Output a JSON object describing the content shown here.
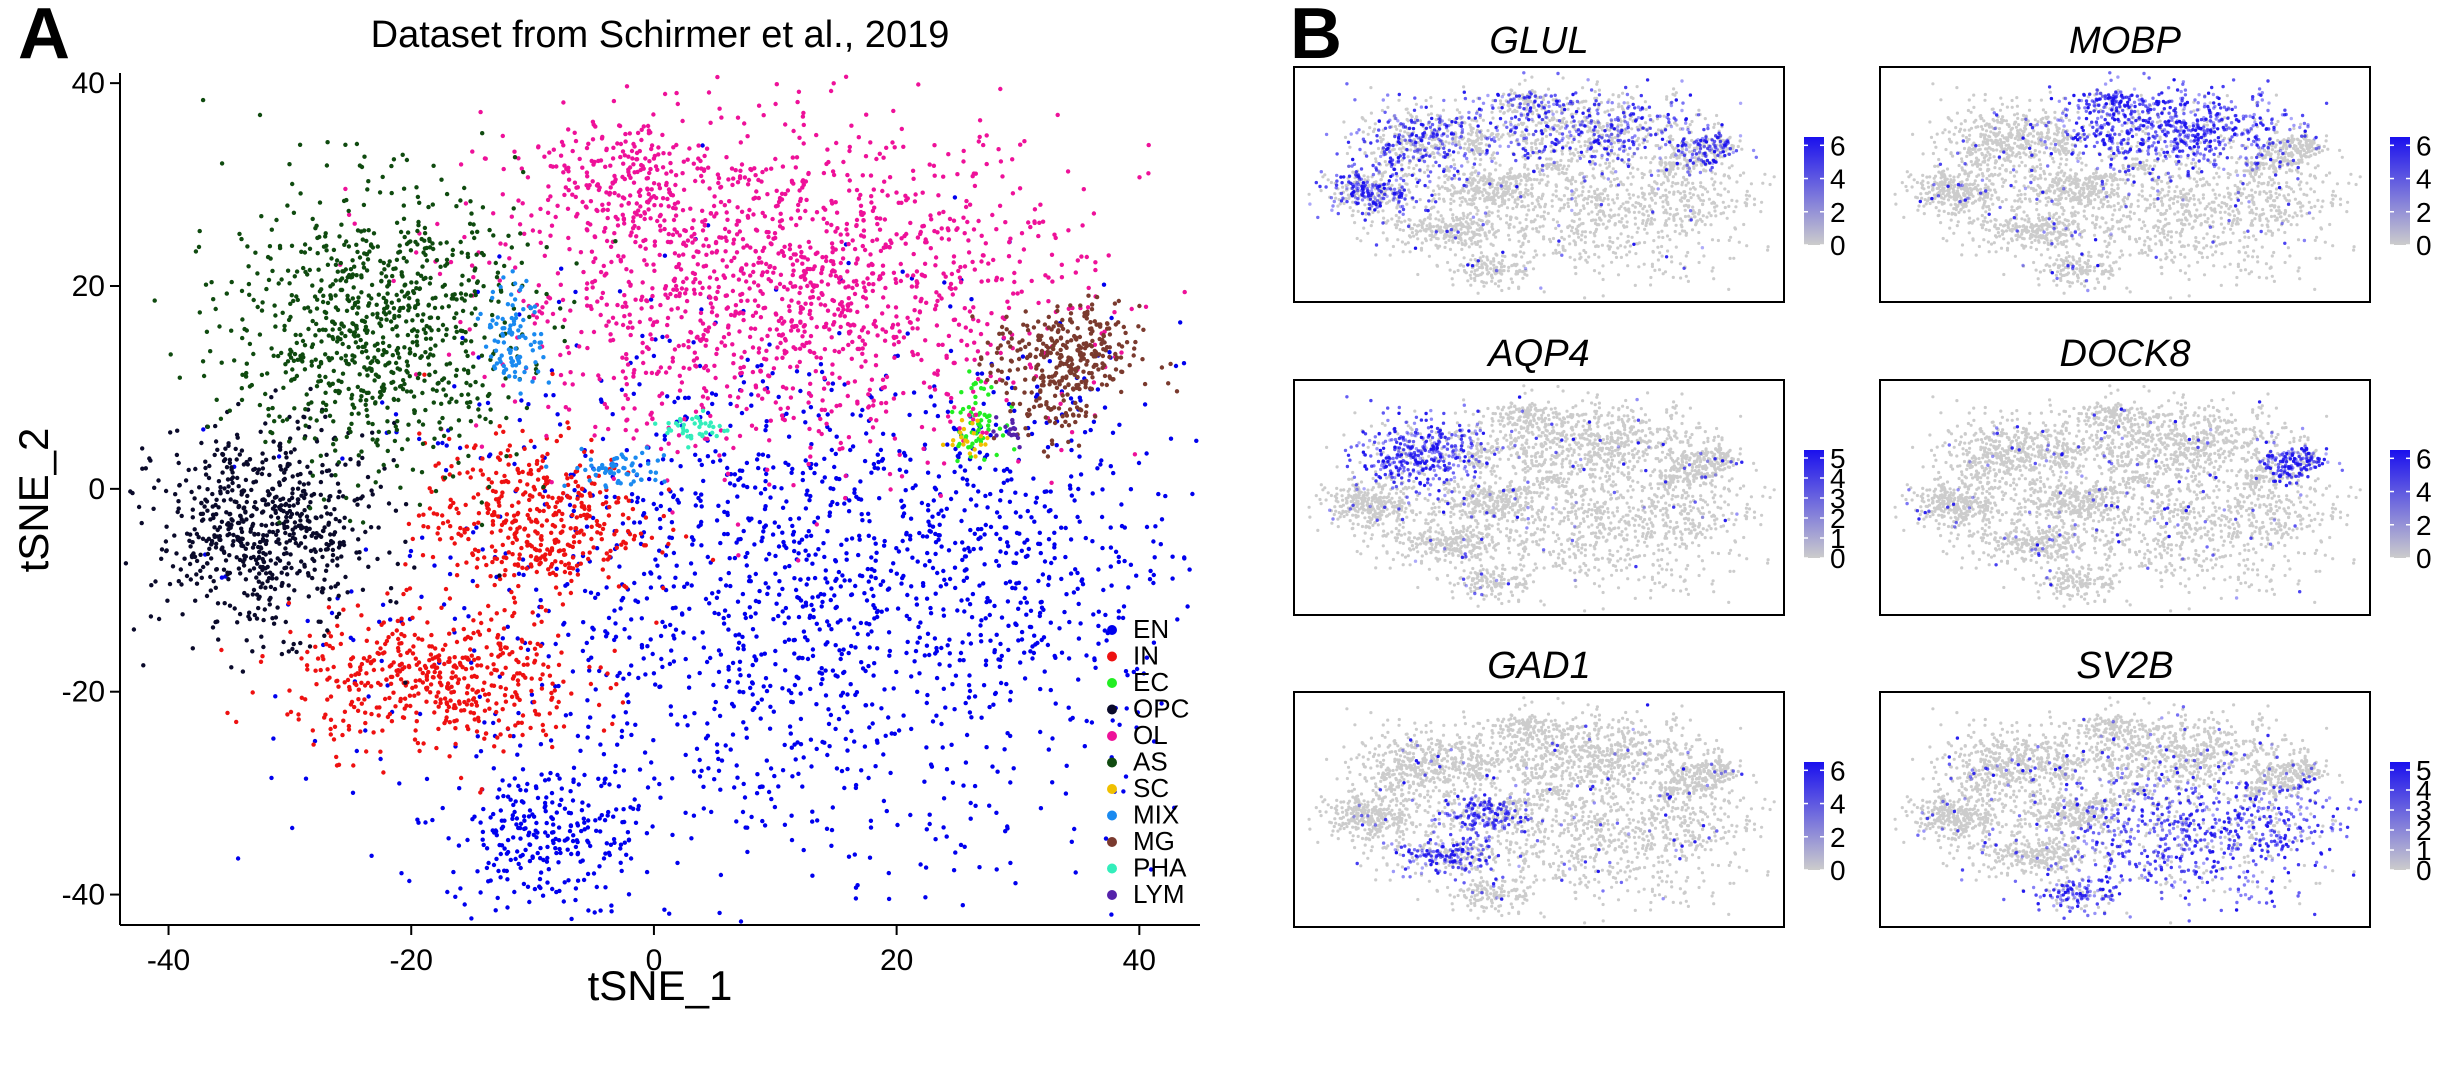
{
  "panels": {
    "a": {
      "letter": "A"
    },
    "b": {
      "letter": "B"
    }
  },
  "chart_data": [
    {
      "type": "scatter",
      "title": "Dataset from Schirmer et al., 2019",
      "xlabel": "tSNE_1",
      "ylabel": "tSNE_2",
      "xlim": [
        -44,
        45
      ],
      "ylim": [
        -43,
        41
      ],
      "xticks": [
        -40,
        -20,
        0,
        20,
        40
      ],
      "yticks": [
        -40,
        -20,
        0,
        20,
        40
      ],
      "grid": false,
      "legend_position": "bottom-right",
      "series": [
        {
          "name": "EN",
          "color": "#0000ee",
          "clusters": [
            {
              "cx": 11,
              "cy": -12,
              "sx": 16,
              "sy": 14,
              "n": 1500
            },
            {
              "cx": 27,
              "cy": -6,
              "sx": 8,
              "sy": 9,
              "n": 300
            },
            {
              "cx": -9,
              "cy": -34,
              "sx": 4,
              "sy": 3.5,
              "n": 250
            }
          ]
        },
        {
          "name": "IN",
          "color": "#ee1111",
          "clusters": [
            {
              "cx": -10,
              "cy": -3,
              "sx": 4.5,
              "sy": 4,
              "n": 450
            },
            {
              "cx": -18,
              "cy": -19,
              "sx": 6,
              "sy": 3.5,
              "n": 500
            }
          ]
        },
        {
          "name": "EC",
          "color": "#22ee22",
          "clusters": [
            {
              "cx": 26.5,
              "cy": 7,
              "sx": 1,
              "sy": 1.8,
              "n": 60
            }
          ]
        },
        {
          "name": "OPC",
          "color": "#0a0a2a",
          "clusters": [
            {
              "cx": -32,
              "cy": -4,
              "sx": 4.5,
              "sy": 5,
              "n": 700
            }
          ]
        },
        {
          "name": "OL",
          "color": "#ee1199",
          "clusters": [
            {
              "cx": 11,
              "cy": 20,
              "sx": 12,
              "sy": 8,
              "n": 1500
            },
            {
              "cx": -3,
              "cy": 31,
              "sx": 4,
              "sy": 3,
              "n": 200
            }
          ]
        },
        {
          "name": "AS",
          "color": "#0f4a0f",
          "clusters": [
            {
              "cx": -23,
              "cy": 16,
              "sx": 6,
              "sy": 7,
              "n": 900
            }
          ]
        },
        {
          "name": "SC",
          "color": "#f0c000",
          "clusters": [
            {
              "cx": 26,
              "cy": 5,
              "sx": 0.8,
              "sy": 1,
              "n": 20
            }
          ]
        },
        {
          "name": "MIX",
          "color": "#1a8af0",
          "clusters": [
            {
              "cx": -11.5,
              "cy": 15,
              "sx": 1.2,
              "sy": 2.6,
              "n": 100
            },
            {
              "cx": -3,
              "cy": 2,
              "sx": 2,
              "sy": 1,
              "n": 60
            }
          ]
        },
        {
          "name": "MG",
          "color": "#7a3a2e",
          "clusters": [
            {
              "cx": 34,
              "cy": 13,
              "sx": 3,
              "sy": 2.5,
              "n": 300
            },
            {
              "cx": 33,
              "cy": 8,
              "sx": 1.5,
              "sy": 2,
              "n": 60
            }
          ]
        },
        {
          "name": "PHA",
          "color": "#33eebb",
          "clusters": [
            {
              "cx": 3.5,
              "cy": 6,
              "sx": 1.3,
              "sy": 0.8,
              "n": 40
            }
          ]
        },
        {
          "name": "LYM",
          "color": "#5522aa",
          "clusters": [
            {
              "cx": 29,
              "cy": 6,
              "sx": 1,
              "sy": 1,
              "n": 15
            }
          ]
        }
      ]
    },
    {
      "type": "scatter",
      "title": "GLUL",
      "legend_ticks": [
        "0",
        "2",
        "4",
        "6"
      ],
      "legend_range": [
        0,
        6.5
      ],
      "colors": {
        "low": "#cccccc",
        "high": "#1a10ee"
      },
      "expressed_in": [
        "OL",
        "AS",
        "OPC",
        "MG"
      ],
      "expression_fraction": 0.45
    },
    {
      "type": "scatter",
      "title": "MOBP",
      "legend_ticks": [
        "0",
        "2",
        "4",
        "6"
      ],
      "legend_range": [
        0,
        6.5
      ],
      "colors": {
        "low": "#cccccc",
        "high": "#1a10ee"
      },
      "expressed_in": [
        "OL"
      ],
      "expression_fraction": 0.85
    },
    {
      "type": "scatter",
      "title": "AQP4",
      "legend_ticks": [
        "0",
        "1",
        "2",
        "3",
        "4",
        "5"
      ],
      "legend_range": [
        0,
        5.4
      ],
      "colors": {
        "low": "#cccccc",
        "high": "#1a10ee"
      },
      "expressed_in": [
        "AS"
      ],
      "expression_fraction": 0.8
    },
    {
      "type": "scatter",
      "title": "DOCK8",
      "legend_ticks": [
        "0",
        "2",
        "4",
        "6"
      ],
      "legend_range": [
        0,
        6.5
      ],
      "colors": {
        "low": "#cccccc",
        "high": "#1a10ee"
      },
      "expressed_in": [
        "MG"
      ],
      "expression_fraction": 0.85
    },
    {
      "type": "scatter",
      "title": "GAD1",
      "legend_ticks": [
        "0",
        "2",
        "4",
        "6"
      ],
      "legend_range": [
        0,
        6.5
      ],
      "colors": {
        "low": "#cccccc",
        "high": "#1a10ee"
      },
      "expressed_in": [
        "IN"
      ],
      "expression_fraction": 0.6
    },
    {
      "type": "scatter",
      "title": "SV2B",
      "legend_ticks": [
        "0",
        "1",
        "2",
        "3",
        "4",
        "5"
      ],
      "legend_range": [
        0,
        5.4
      ],
      "colors": {
        "low": "#cccccc",
        "high": "#1a10ee"
      },
      "expressed_in": [
        "EN"
      ],
      "expression_fraction": 0.7
    }
  ]
}
